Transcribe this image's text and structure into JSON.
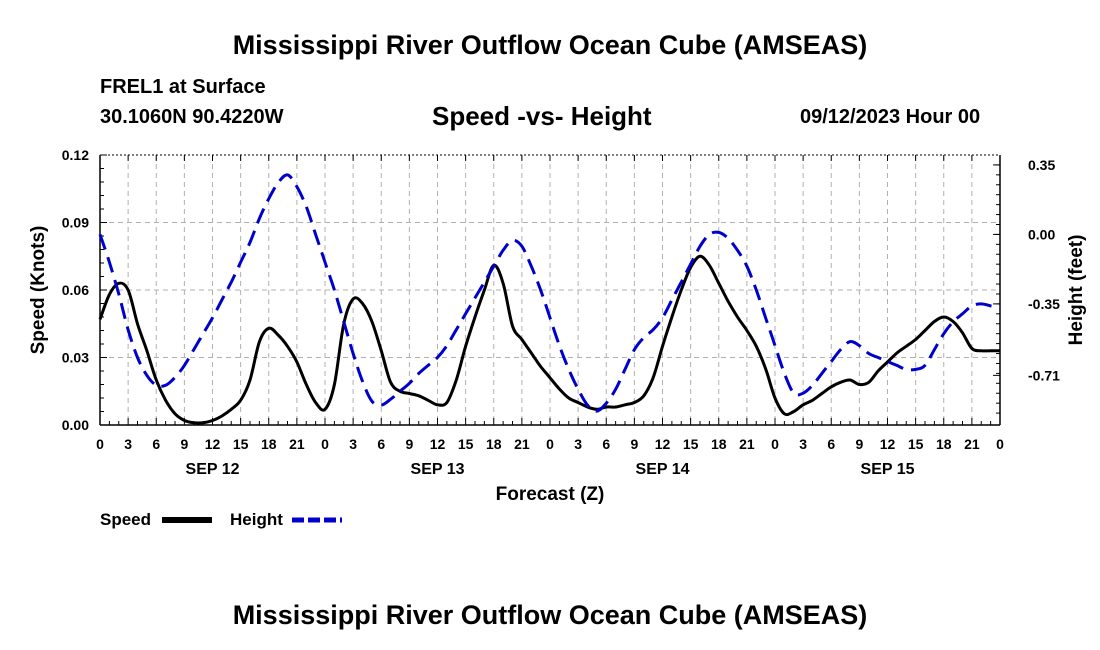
{
  "titles": {
    "main": "Mississippi River Outflow Ocean Cube (AMSEAS)",
    "bottom": "Mississippi River Outflow Ocean Cube (AMSEAS)",
    "station": "FREL1 at Surface",
    "coords": "30.1060N  90.4220W",
    "subtitle": "Speed -vs- Height",
    "datetime": "09/12/2023 Hour 00"
  },
  "legend": {
    "speed": "Speed",
    "height": "Height"
  },
  "colors": {
    "speed": "#000000",
    "height": "#0000cc",
    "grid": "#b0b0b0"
  },
  "chart_data": {
    "type": "line",
    "title": "Speed -vs- Height",
    "xlabel": "Forecast (Z)",
    "ylabel": "Speed (Knots)",
    "y2label": "Height (feet)",
    "x_range": [
      0,
      96
    ],
    "ylim": [
      0,
      0.12
    ],
    "y2lim": [
      -0.96,
      0.4
    ],
    "x_ticks": [
      0,
      3,
      6,
      9,
      12,
      15,
      18,
      21,
      24,
      27,
      30,
      33,
      36,
      39,
      42,
      45,
      48,
      51,
      54,
      57,
      60,
      63,
      66,
      69,
      72,
      75,
      78,
      81,
      84,
      87,
      90,
      93,
      96
    ],
    "x_tick_labels": [
      "0",
      "3",
      "6",
      "9",
      "12",
      "15",
      "18",
      "21",
      "0",
      "3",
      "6",
      "9",
      "12",
      "15",
      "18",
      "21",
      "0",
      "3",
      "6",
      "9",
      "12",
      "15",
      "18",
      "21",
      "0",
      "3",
      "6",
      "9",
      "12",
      "15",
      "18",
      "21",
      "0"
    ],
    "day_labels": [
      {
        "hour": 12,
        "label": "SEP 12"
      },
      {
        "hour": 36,
        "label": "SEP 13"
      },
      {
        "hour": 60,
        "label": "SEP 14"
      },
      {
        "hour": 84,
        "label": "SEP 15"
      }
    ],
    "y_ticks": [
      0,
      0.03,
      0.06,
      0.09,
      0.12
    ],
    "y_tick_labels": [
      "0.00",
      "0.03",
      "0.06",
      "0.09",
      "0.12"
    ],
    "y2_ticks": [
      0.35,
      0.0,
      -0.35,
      -0.71
    ],
    "y2_tick_labels": [
      "0.35",
      "0.00",
      "-0.35",
      "-0.71"
    ],
    "grid": true,
    "series": [
      {
        "name": "Speed",
        "axis": "left",
        "x": [
          0,
          1,
          2,
          3,
          4,
          5,
          6,
          7,
          8,
          9,
          10,
          11,
          12,
          13,
          14,
          15,
          16,
          17,
          18,
          19,
          20,
          21,
          22,
          23,
          24,
          25,
          26,
          27,
          28,
          29,
          30,
          31,
          32,
          33,
          34,
          35,
          36,
          37,
          38,
          39,
          40,
          41,
          42,
          43,
          44,
          45,
          46,
          47,
          48,
          49,
          50,
          51,
          52,
          53,
          54,
          55,
          56,
          57,
          58,
          59,
          60,
          61,
          62,
          63,
          64,
          65,
          66,
          67,
          68,
          69,
          70,
          71,
          72,
          73,
          74,
          75,
          76,
          77,
          78,
          79,
          80,
          81,
          82,
          83,
          84,
          85,
          86,
          87,
          88,
          89,
          90,
          91,
          92,
          93,
          94,
          95,
          96
        ],
        "values": [
          0.047,
          0.058,
          0.063,
          0.06,
          0.045,
          0.033,
          0.02,
          0.011,
          0.005,
          0.002,
          0.001,
          0.001,
          0.002,
          0.004,
          0.007,
          0.011,
          0.02,
          0.037,
          0.043,
          0.04,
          0.035,
          0.028,
          0.018,
          0.01,
          0.007,
          0.018,
          0.045,
          0.056,
          0.054,
          0.046,
          0.033,
          0.019,
          0.015,
          0.014,
          0.013,
          0.011,
          0.009,
          0.01,
          0.02,
          0.035,
          0.048,
          0.06,
          0.071,
          0.063,
          0.044,
          0.038,
          0.032,
          0.026,
          0.021,
          0.016,
          0.012,
          0.01,
          0.008,
          0.007,
          0.008,
          0.008,
          0.009,
          0.01,
          0.013,
          0.021,
          0.035,
          0.048,
          0.06,
          0.07,
          0.075,
          0.071,
          0.063,
          0.055,
          0.048,
          0.042,
          0.035,
          0.025,
          0.012,
          0.005,
          0.006,
          0.009,
          0.011,
          0.014,
          0.017,
          0.019,
          0.02,
          0.018,
          0.019,
          0.024,
          0.028,
          0.032,
          0.035,
          0.038,
          0.042,
          0.046,
          0.048,
          0.046,
          0.041,
          0.034,
          0.033,
          0.033,
          0.033
        ]
      },
      {
        "name": "Height",
        "axis": "right",
        "x": [
          0,
          1,
          2,
          3,
          4,
          5,
          6,
          7,
          8,
          9,
          10,
          11,
          12,
          13,
          14,
          15,
          16,
          17,
          18,
          19,
          20,
          21,
          22,
          23,
          24,
          25,
          26,
          27,
          28,
          29,
          30,
          31,
          32,
          33,
          34,
          35,
          36,
          37,
          38,
          39,
          40,
          41,
          42,
          43,
          44,
          45,
          46,
          47,
          48,
          49,
          50,
          51,
          52,
          53,
          54,
          55,
          56,
          57,
          58,
          59,
          60,
          61,
          62,
          63,
          64,
          65,
          66,
          67,
          68,
          69,
          70,
          71,
          72,
          73,
          74,
          75,
          76,
          77,
          78,
          79,
          80,
          81,
          82,
          83,
          84,
          85,
          86,
          87,
          88,
          89,
          90,
          91,
          92,
          93,
          94,
          95,
          96
        ],
        "values": [
          0.0,
          -0.14,
          -0.3,
          -0.48,
          -0.62,
          -0.71,
          -0.76,
          -0.76,
          -0.72,
          -0.66,
          -0.58,
          -0.5,
          -0.42,
          -0.33,
          -0.24,
          -0.14,
          -0.04,
          0.08,
          0.18,
          0.26,
          0.3,
          0.24,
          0.14,
          0.0,
          -0.14,
          -0.28,
          -0.44,
          -0.6,
          -0.74,
          -0.84,
          -0.86,
          -0.83,
          -0.79,
          -0.75,
          -0.7,
          -0.66,
          -0.62,
          -0.56,
          -0.48,
          -0.4,
          -0.32,
          -0.24,
          -0.16,
          -0.08,
          -0.03,
          -0.06,
          -0.16,
          -0.28,
          -0.42,
          -0.56,
          -0.68,
          -0.78,
          -0.86,
          -0.89,
          -0.85,
          -0.78,
          -0.68,
          -0.58,
          -0.52,
          -0.48,
          -0.42,
          -0.33,
          -0.24,
          -0.15,
          -0.06,
          0.0,
          0.01,
          -0.02,
          -0.08,
          -0.16,
          -0.28,
          -0.42,
          -0.56,
          -0.7,
          -0.8,
          -0.8,
          -0.76,
          -0.7,
          -0.64,
          -0.58,
          -0.54,
          -0.56,
          -0.6,
          -0.62,
          -0.64,
          -0.66,
          -0.68,
          -0.68,
          -0.66,
          -0.58,
          -0.5,
          -0.44,
          -0.4,
          -0.36,
          -0.35,
          -0.36,
          -0.37
        ]
      }
    ]
  }
}
